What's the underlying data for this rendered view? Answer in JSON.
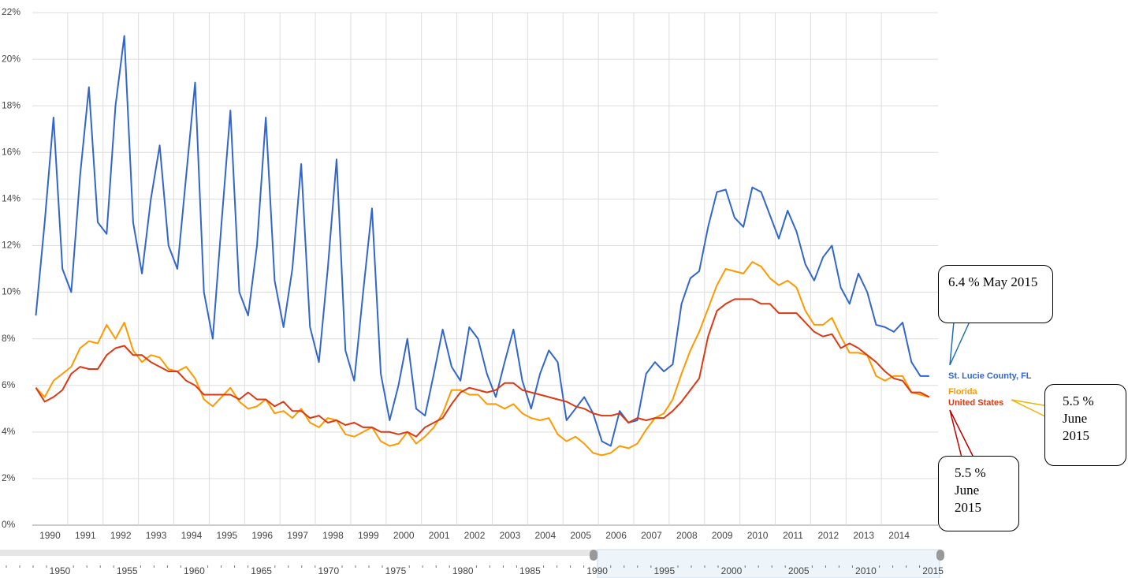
{
  "chart_data": {
    "type": "line",
    "ylim": [
      0,
      22
    ],
    "yticks": [
      {
        "value": 0,
        "label": "0%"
      },
      {
        "value": 2,
        "label": "2%"
      },
      {
        "value": 4,
        "label": "4%"
      },
      {
        "value": 6,
        "label": "6%"
      },
      {
        "value": 8,
        "label": "8%"
      },
      {
        "value": 10,
        "label": "10%"
      },
      {
        "value": 12,
        "label": "12%"
      },
      {
        "value": 14,
        "label": "14%"
      },
      {
        "value": 16,
        "label": "16%"
      },
      {
        "value": 18,
        "label": "18%"
      },
      {
        "value": 20,
        "label": "20%"
      },
      {
        "value": 22,
        "label": "22%"
      }
    ],
    "xlim": [
      1990,
      2015.6
    ],
    "xticks": [
      1990,
      1991,
      1992,
      1993,
      1994,
      1995,
      1996,
      1997,
      1998,
      1999,
      2000,
      2001,
      2002,
      2003,
      2004,
      2005,
      2006,
      2007,
      2008,
      2009,
      2010,
      2011,
      2012,
      2013,
      2014
    ],
    "grid": true,
    "x": [
      1990.1,
      1990.35,
      1990.6,
      1990.85,
      1991.1,
      1991.35,
      1991.6,
      1991.85,
      1992.1,
      1992.35,
      1992.6,
      1992.85,
      1993.1,
      1993.35,
      1993.6,
      1993.85,
      1994.1,
      1994.35,
      1994.6,
      1994.85,
      1995.1,
      1995.35,
      1995.6,
      1995.85,
      1996.1,
      1996.35,
      1996.6,
      1996.85,
      1997.1,
      1997.35,
      1997.6,
      1997.85,
      1998.1,
      1998.35,
      1998.6,
      1998.85,
      1999.1,
      1999.35,
      1999.6,
      1999.85,
      2000.1,
      2000.35,
      2000.6,
      2000.85,
      2001.1,
      2001.35,
      2001.6,
      2001.85,
      2002.1,
      2002.35,
      2002.6,
      2002.85,
      2003.1,
      2003.35,
      2003.6,
      2003.85,
      2004.1,
      2004.35,
      2004.6,
      2004.85,
      2005.1,
      2005.35,
      2005.6,
      2005.85,
      2006.1,
      2006.35,
      2006.6,
      2006.85,
      2007.1,
      2007.35,
      2007.6,
      2007.85,
      2008.1,
      2008.35,
      2008.6,
      2008.85,
      2009.1,
      2009.35,
      2009.6,
      2009.85,
      2010.1,
      2010.35,
      2010.6,
      2010.85,
      2011.1,
      2011.35,
      2011.6,
      2011.85,
      2012.1,
      2012.35,
      2012.6,
      2012.85,
      2013.1,
      2013.35,
      2013.6,
      2013.85,
      2014.1,
      2014.35,
      2014.6,
      2014.85,
      2015.1,
      2015.35
    ],
    "series": [
      {
        "name": "St. Lucie County, FL",
        "color": "#3366cc",
        "values": [
          9.0,
          13.0,
          17.5,
          11.0,
          10.0,
          15.0,
          18.8,
          13.0,
          12.5,
          18.0,
          21.0,
          13.0,
          10.8,
          14.0,
          16.3,
          12.0,
          11.0,
          15.0,
          19.0,
          10.0,
          8.0,
          13.0,
          17.8,
          10.0,
          9.0,
          12.0,
          17.5,
          10.5,
          8.5,
          11.0,
          15.5,
          8.5,
          7.0,
          11.0,
          15.7,
          7.5,
          6.2,
          10.0,
          13.6,
          6.5,
          4.5,
          6.0,
          8.0,
          5.0,
          4.7,
          6.5,
          8.4,
          6.8,
          6.2,
          8.5,
          8.0,
          6.5,
          5.5,
          7.0,
          8.4,
          6.2,
          5.0,
          6.5,
          7.5,
          7.0,
          4.5,
          5.0,
          5.5,
          4.8,
          3.6,
          3.4,
          4.9,
          4.4,
          4.5,
          6.5,
          7.0,
          6.6,
          6.9,
          9.5,
          10.6,
          10.9,
          12.8,
          14.3,
          14.4,
          13.2,
          12.8,
          14.5,
          14.3,
          13.3,
          12.3,
          13.5,
          12.6,
          11.2,
          10.5,
          11.5,
          12.0,
          10.2,
          9.5,
          10.8,
          10.0,
          8.6,
          8.5,
          8.3,
          8.7,
          7.0,
          6.4,
          6.4
        ]
      },
      {
        "name": "Florida",
        "color": "#ff9900",
        "values": [
          5.9,
          5.5,
          6.2,
          6.5,
          6.8,
          7.6,
          7.9,
          7.8,
          8.6,
          8.0,
          8.7,
          7.5,
          7.0,
          7.3,
          7.2,
          6.7,
          6.6,
          6.8,
          6.3,
          5.4,
          5.1,
          5.5,
          5.9,
          5.3,
          5.0,
          5.1,
          5.4,
          4.8,
          4.9,
          4.6,
          5.0,
          4.4,
          4.2,
          4.6,
          4.5,
          3.9,
          3.8,
          4.0,
          4.2,
          3.6,
          3.4,
          3.5,
          4.0,
          3.5,
          3.8,
          4.2,
          4.8,
          5.8,
          5.8,
          5.6,
          5.6,
          5.2,
          5.2,
          5.0,
          5.2,
          4.8,
          4.6,
          4.5,
          4.6,
          3.9,
          3.6,
          3.8,
          3.5,
          3.1,
          3.0,
          3.1,
          3.4,
          3.3,
          3.5,
          4.1,
          4.6,
          4.8,
          5.4,
          6.5,
          7.5,
          8.3,
          9.3,
          10.3,
          11.0,
          10.9,
          10.8,
          11.3,
          11.1,
          10.6,
          10.3,
          10.5,
          10.2,
          9.2,
          8.6,
          8.6,
          8.9,
          8.1,
          7.4,
          7.4,
          7.3,
          6.4,
          6.2,
          6.4,
          6.4,
          5.7,
          5.6,
          5.5
        ]
      },
      {
        "name": "United States",
        "color": "#dc3912",
        "values": [
          5.9,
          5.3,
          5.5,
          5.8,
          6.5,
          6.8,
          6.7,
          6.7,
          7.3,
          7.6,
          7.7,
          7.3,
          7.3,
          7.0,
          6.8,
          6.6,
          6.6,
          6.2,
          6.0,
          5.6,
          5.6,
          5.6,
          5.6,
          5.4,
          5.7,
          5.4,
          5.4,
          5.1,
          5.3,
          4.9,
          4.9,
          4.6,
          4.7,
          4.4,
          4.5,
          4.3,
          4.4,
          4.2,
          4.2,
          4.0,
          4.0,
          3.9,
          4.0,
          3.8,
          4.2,
          4.4,
          4.6,
          5.2,
          5.7,
          5.9,
          5.8,
          5.7,
          5.8,
          6.1,
          6.1,
          5.8,
          5.7,
          5.6,
          5.5,
          5.4,
          5.3,
          5.1,
          5.0,
          4.8,
          4.7,
          4.7,
          4.8,
          4.4,
          4.6,
          4.5,
          4.6,
          4.6,
          4.9,
          5.3,
          5.8,
          6.3,
          8.1,
          9.2,
          9.5,
          9.7,
          9.7,
          9.7,
          9.5,
          9.5,
          9.1,
          9.1,
          9.1,
          8.7,
          8.3,
          8.1,
          8.2,
          7.6,
          7.8,
          7.6,
          7.3,
          7.0,
          6.6,
          6.3,
          6.2,
          5.7,
          5.7,
          5.5
        ]
      }
    ],
    "range_selector_labels": [
      "1950",
      "1955",
      "1960",
      "1965",
      "1970",
      "1975",
      "1980",
      "1985",
      "1990",
      "1995",
      "2000",
      "2005",
      "2010",
      "2015"
    ],
    "annotations": [
      {
        "text": "6.4 % May 2015",
        "color": "#1f6fb2"
      },
      {
        "text": "5.5 % June 2015",
        "color": "#f0b400"
      },
      {
        "text": "5.5 % June 2015",
        "color": "#c00000"
      }
    ]
  }
}
